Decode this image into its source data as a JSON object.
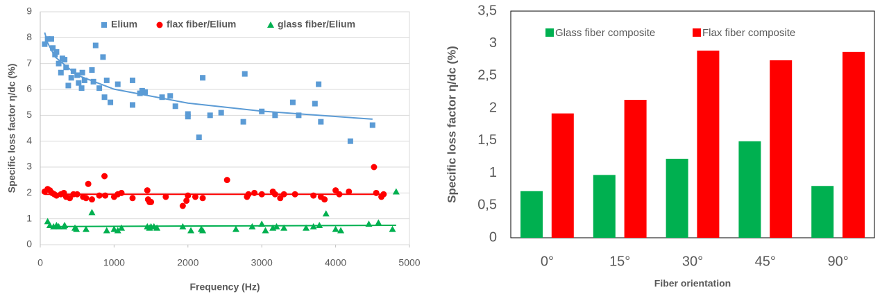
{
  "chart_data": [
    {
      "type": "scatter",
      "xlabel": "Frequency (Hz)",
      "ylabel": "Specific loss factor η/dc  (%)",
      "xlim": [
        0,
        5000
      ],
      "ylim": [
        0,
        9
      ],
      "xticks": [
        0,
        1000,
        2000,
        3000,
        4000,
        5000
      ],
      "yticks": [
        0,
        1,
        2,
        3,
        4,
        5,
        6,
        7,
        8,
        9
      ],
      "grid": true,
      "legend": "top",
      "series": [
        {
          "name": "Elium",
          "color": "#5b9bd5",
          "marker": "square",
          "x": [
            60,
            100,
            150,
            170,
            200,
            220,
            250,
            280,
            300,
            330,
            350,
            380,
            420,
            450,
            500,
            520,
            560,
            570,
            600,
            700,
            720,
            750,
            800,
            850,
            870,
            900,
            950,
            1050,
            1250,
            1250,
            1350,
            1380,
            1420,
            1650,
            1760,
            1830,
            2000,
            2000,
            2150,
            2200,
            2300,
            2450,
            2750,
            2770,
            3000,
            3180,
            3420,
            3500,
            3720,
            3770,
            3800,
            4200,
            4500
          ],
          "values": [
            7.75,
            7.95,
            7.95,
            7.6,
            7.35,
            7.45,
            7.0,
            6.65,
            7.2,
            7.15,
            6.85,
            6.15,
            6.45,
            6.7,
            6.55,
            6.25,
            6.05,
            6.65,
            6.35,
            6.75,
            6.3,
            7.7,
            6.05,
            7.25,
            5.7,
            6.35,
            5.5,
            6.2,
            6.35,
            5.4,
            5.85,
            5.95,
            5.9,
            5.7,
            5.75,
            5.35,
            5.05,
            4.95,
            4.15,
            6.45,
            5.0,
            5.1,
            4.75,
            6.6,
            5.15,
            5.0,
            5.5,
            5.0,
            5.45,
            6.2,
            4.75,
            4.0,
            4.62
          ],
          "trend": {
            "x": [
              60,
              100,
              200,
              500,
              1000,
              2000,
              3000,
              4500
            ],
            "values": [
              8.2,
              7.8,
              7.26,
              6.55,
              6.01,
              5.47,
              5.16,
              4.85
            ]
          }
        },
        {
          "name": "flax fiber/Elium",
          "color": "#ff0000",
          "marker": "circle",
          "x": [
            60,
            100,
            130,
            160,
            190,
            220,
            280,
            320,
            350,
            400,
            450,
            500,
            580,
            620,
            650,
            700,
            800,
            870,
            880,
            1000,
            1050,
            1100,
            1250,
            1450,
            1460,
            1480,
            1500,
            1700,
            1930,
            1980,
            2000,
            2100,
            2200,
            2530,
            2800,
            2820,
            2900,
            3000,
            3150,
            3180,
            3250,
            3300,
            3450,
            3700,
            3800,
            3850,
            4000,
            4050,
            4180,
            4520,
            4550,
            4620,
            4650
          ],
          "values": [
            2.05,
            2.15,
            2.1,
            2.0,
            1.95,
            1.9,
            1.95,
            2.0,
            1.85,
            1.8,
            1.95,
            1.95,
            1.85,
            1.8,
            2.35,
            1.75,
            1.9,
            2.65,
            1.9,
            1.85,
            1.95,
            2.0,
            1.8,
            2.1,
            1.75,
            1.65,
            1.65,
            1.85,
            1.5,
            1.7,
            1.9,
            1.85,
            1.8,
            2.5,
            1.85,
            1.95,
            2.0,
            1.95,
            2.05,
            1.95,
            1.8,
            1.95,
            1.95,
            1.9,
            1.85,
            1.75,
            2.1,
            1.95,
            2.05,
            3.0,
            2.0,
            1.85,
            1.95
          ],
          "trend": {
            "x": [
              60,
              4650
            ],
            "values": [
              1.95,
              1.95
            ]
          }
        },
        {
          "name": "glass fiber/Elium",
          "color": "#00b050",
          "marker": "triangle",
          "x": [
            100,
            130,
            180,
            220,
            250,
            320,
            330,
            470,
            490,
            620,
            700,
            900,
            1000,
            1050,
            1100,
            1450,
            1480,
            1500,
            1540,
            1580,
            1930,
            2040,
            2180,
            2200,
            2650,
            2870,
            3000,
            3050,
            3150,
            3200,
            3300,
            3600,
            3700,
            3780,
            3870,
            4000,
            4070,
            4450,
            4580,
            4770,
            4820
          ],
          "values": [
            0.9,
            0.75,
            0.7,
            0.75,
            0.7,
            0.7,
            0.75,
            0.65,
            0.6,
            0.6,
            1.25,
            0.55,
            0.6,
            0.55,
            0.65,
            0.7,
            0.65,
            0.7,
            0.7,
            0.65,
            0.7,
            0.55,
            0.6,
            0.55,
            0.6,
            0.7,
            0.8,
            0.55,
            0.65,
            0.7,
            0.65,
            0.65,
            0.7,
            0.75,
            1.2,
            0.6,
            0.55,
            0.8,
            0.85,
            0.6,
            2.05
          ],
          "trend": {
            "x": [
              100,
              4820
            ],
            "values": [
              0.7,
              0.75
            ]
          }
        }
      ]
    },
    {
      "type": "bar",
      "xlabel": "Fiber orientation",
      "ylabel": "Specific loss factor η/dc (%)",
      "categories": [
        "0°",
        "15°",
        "30°",
        "45°",
        "90°"
      ],
      "ylim": [
        0,
        3.5
      ],
      "yticks": [
        0,
        {
          "value": 0.5,
          "label": "0,5"
        },
        1,
        {
          "value": 1.5,
          "label": "1,5"
        },
        2,
        {
          "value": 2.5,
          "label": "2,5"
        },
        3,
        {
          "value": 3.5,
          "label": "3,5"
        }
      ],
      "grid": false,
      "legend": "top",
      "series": [
        {
          "name": "Glass fiber composite",
          "color": "#00b050",
          "values": [
            0.72,
            0.97,
            1.22,
            1.49,
            0.8
          ]
        },
        {
          "name": "Flax fiber composite",
          "color": "#ff0000",
          "values": [
            1.92,
            2.13,
            2.89,
            2.74,
            2.87
          ]
        }
      ]
    }
  ]
}
